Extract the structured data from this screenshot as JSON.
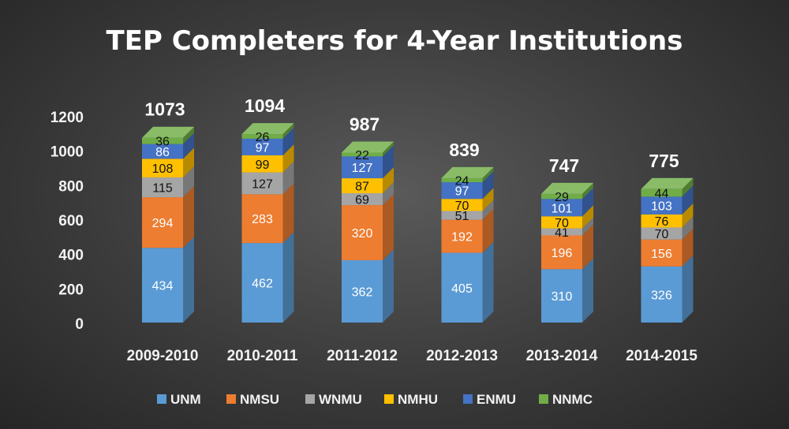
{
  "chart_data": {
    "type": "bar",
    "stacked": true,
    "style": "3d",
    "title": "TEP Completers for 4-Year Institutions",
    "categories": [
      "2009-2010",
      "2010-2011",
      "2011-2012",
      "2012-2013",
      "2013-2014",
      "2014-2015"
    ],
    "series": [
      {
        "name": "UNM",
        "color": "#5b9bd5",
        "values": [
          434,
          462,
          362,
          405,
          310,
          326
        ]
      },
      {
        "name": "NMSU",
        "color": "#ed7d31",
        "values": [
          294,
          283,
          320,
          192,
          196,
          156
        ]
      },
      {
        "name": "WNMU",
        "color": "#a5a5a5",
        "values": [
          115,
          127,
          69,
          51,
          41,
          70
        ]
      },
      {
        "name": "NMHU",
        "color": "#ffc000",
        "values": [
          108,
          99,
          87,
          70,
          70,
          76
        ]
      },
      {
        "name": "ENMU",
        "color": "#4472c4",
        "values": [
          86,
          97,
          127,
          97,
          101,
          103
        ]
      },
      {
        "name": "NNMC",
        "color": "#70ad47",
        "values": [
          36,
          26,
          22,
          24,
          29,
          44
        ]
      }
    ],
    "totals": [
      1073,
      1094,
      987,
      839,
      747,
      775
    ],
    "ylim": [
      0,
      1200
    ],
    "yticks": [
      "0",
      "200",
      "400",
      "600",
      "800",
      "1000",
      "1200"
    ],
    "grid": false,
    "legend": "bottom"
  }
}
